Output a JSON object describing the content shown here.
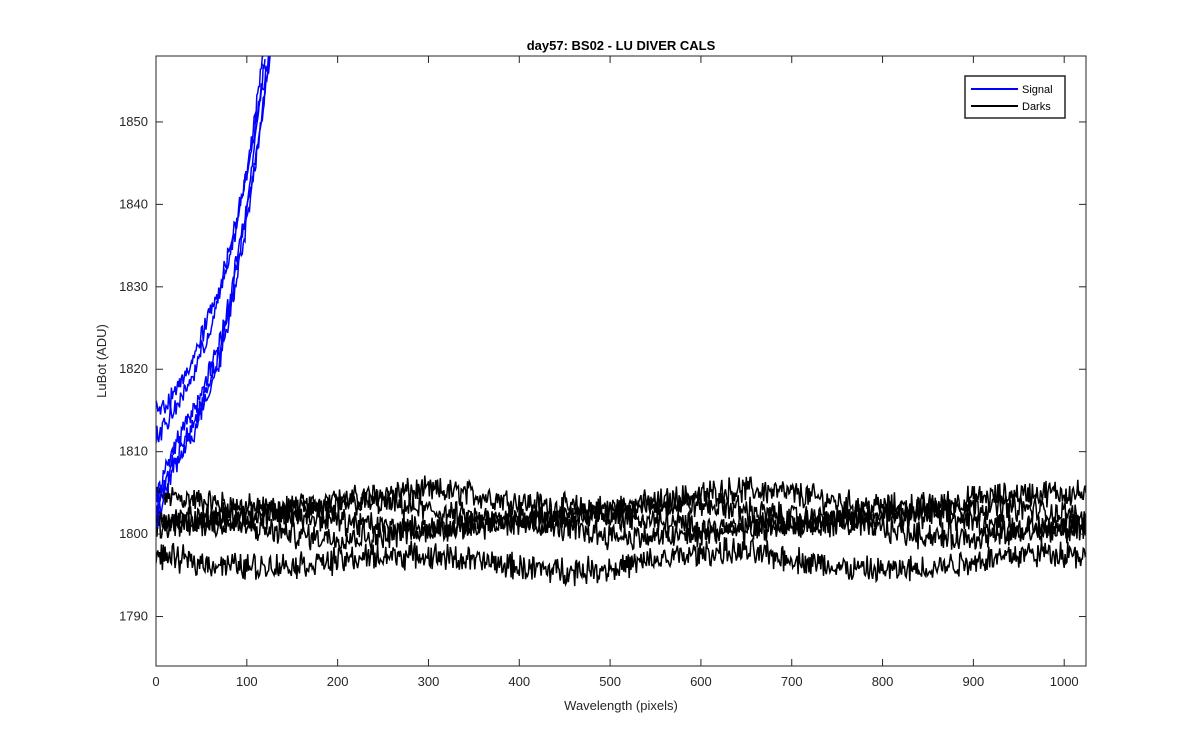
{
  "chart_data": {
    "type": "line",
    "title": "day57: BS02 - LU DIVER CALS",
    "xlabel": "Wavelength (pixels)",
    "ylabel": "LuBot (ADU)",
    "xlim": [
      0,
      1024
    ],
    "ylim": [
      1784,
      1858
    ],
    "xticks": [
      0,
      100,
      200,
      300,
      400,
      500,
      600,
      700,
      800,
      900,
      1000
    ],
    "yticks": [
      1790,
      1800,
      1810,
      1820,
      1830,
      1840,
      1850
    ],
    "grid": false,
    "legend": {
      "placement": "top-right",
      "entries": [
        {
          "label": "Signal",
          "color": "#0000ff"
        },
        {
          "label": "Darks",
          "color": "#000000"
        }
      ]
    },
    "series": [
      {
        "group": "Signal",
        "color": "#0000ff",
        "x": [
          0,
          10,
          20,
          30,
          40,
          50,
          60,
          70,
          80,
          90,
          100,
          110,
          115,
          120
        ],
        "y": [
          1804,
          1808,
          1810,
          1813,
          1815,
          1817,
          1820,
          1823,
          1828,
          1834,
          1840,
          1848,
          1853,
          1858
        ]
      },
      {
        "group": "Signal",
        "color": "#0000ff",
        "x": [
          0,
          10,
          20,
          30,
          40,
          50,
          60,
          70,
          80,
          90,
          100,
          110,
          118,
          125
        ],
        "y": [
          1801,
          1805,
          1808,
          1810,
          1812,
          1815,
          1818,
          1821,
          1826,
          1832,
          1838,
          1845,
          1852,
          1858
        ]
      },
      {
        "group": "Signal",
        "color": "#0000ff",
        "x": [
          0,
          10,
          20,
          30,
          40,
          50,
          60,
          70,
          80,
          90,
          100,
          108,
          114,
          118
        ],
        "y": [
          1812,
          1813,
          1815,
          1817,
          1819,
          1822,
          1825,
          1829,
          1833,
          1838,
          1844,
          1850,
          1855,
          1858
        ]
      },
      {
        "group": "Signal",
        "color": "#0000ff",
        "x": [
          0,
          10,
          20,
          30,
          40,
          50,
          60,
          70,
          80,
          90,
          100,
          110,
          117,
          124
        ],
        "y": [
          1816,
          1815,
          1817,
          1819,
          1821,
          1824,
          1827,
          1830,
          1834,
          1839,
          1844,
          1850,
          1854,
          1858
        ]
      },
      {
        "group": "Signal",
        "color": "#0000ff",
        "x": [
          0,
          10,
          20,
          30,
          40,
          50,
          60,
          70,
          80,
          90,
          100,
          110,
          118,
          126
        ],
        "y": [
          1803,
          1806,
          1809,
          1811,
          1813,
          1816,
          1819,
          1822,
          1827,
          1833,
          1839,
          1846,
          1852,
          1858
        ]
      },
      {
        "group": "Darks",
        "color": "#000000",
        "x": [
          0,
          128,
          256,
          384,
          512,
          640,
          768,
          896,
          1024
        ],
        "y": [
          1804,
          1804,
          1804.5,
          1804,
          1804,
          1804.5,
          1804,
          1804.5,
          1804
        ]
      },
      {
        "group": "Darks",
        "color": "#000000",
        "x": [
          0,
          128,
          256,
          384,
          512,
          640,
          768,
          896,
          1024
        ],
        "y": [
          1802.5,
          1802.5,
          1803,
          1802.5,
          1802.5,
          1803,
          1802.5,
          1802.5,
          1802.5
        ]
      },
      {
        "group": "Darks",
        "color": "#000000",
        "x": [
          0,
          128,
          256,
          384,
          512,
          640,
          768,
          896,
          1024
        ],
        "y": [
          1801.5,
          1801.5,
          1801.5,
          1801.5,
          1801.5,
          1801.5,
          1801.5,
          1801.5,
          1801.5
        ]
      },
      {
        "group": "Darks",
        "color": "#000000",
        "x": [
          0,
          128,
          256,
          384,
          512,
          640,
          768,
          896,
          1024
        ],
        "y": [
          1800.5,
          1800.5,
          1800.5,
          1800.5,
          1800.5,
          1800.5,
          1800.5,
          1800.5,
          1800.5
        ]
      },
      {
        "group": "Darks",
        "color": "#000000",
        "x": [
          0,
          128,
          256,
          384,
          512,
          640,
          768,
          896,
          1024
        ],
        "y": [
          1797,
          1797,
          1796.5,
          1796.5,
          1796.5,
          1797,
          1796.5,
          1796.5,
          1797
        ]
      }
    ]
  }
}
